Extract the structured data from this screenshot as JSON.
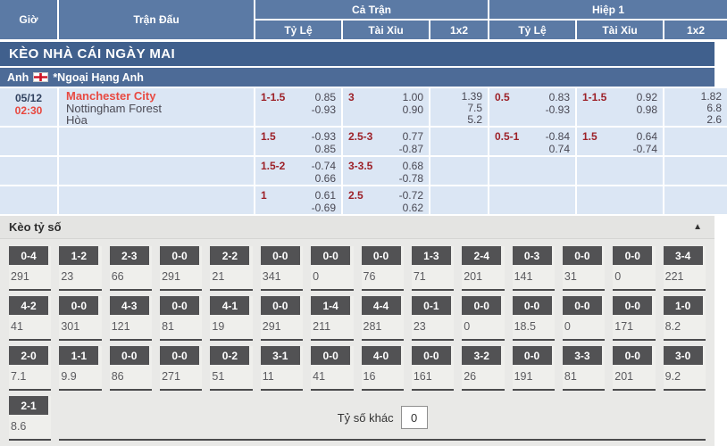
{
  "table_header": {
    "time": "Giờ",
    "match": "Trận Đấu",
    "full_time": "Cả Trận",
    "first_half": "Hiệp 1",
    "handicap": "Tỷ Lệ",
    "over_under": "Tài Xỉu",
    "one_x_two": "1x2"
  },
  "section_bar": {
    "title": "KÈO NHÀ CÁI NGÀY MAI"
  },
  "league_bar": {
    "country": "Anh",
    "league": "*Ngoại Hạng Anh"
  },
  "match": {
    "date": "05/12",
    "time": "02:30",
    "home_team": "Manchester City",
    "away_team": "Nottingham Forest",
    "draw": "Hòa"
  },
  "odds_rows": [
    {
      "ft_handicap": {
        "line": "1-1.5",
        "odds": [
          "0.85",
          "-0.93"
        ]
      },
      "ft_over_under": {
        "line": "3",
        "odds": [
          "1.00",
          "0.90"
        ]
      },
      "ft_1x2": {
        "odds": [
          "1.39",
          "7.5",
          "5.2"
        ]
      },
      "h1_handicap": {
        "line": "0.5",
        "odds": [
          "0.83",
          "-0.93"
        ]
      },
      "h1_over_under": {
        "line": "1-1.5",
        "odds": [
          "0.92",
          "0.98"
        ]
      },
      "h1_1x2": {
        "odds": [
          "1.82",
          "6.8",
          "2.6"
        ]
      }
    },
    {
      "ft_handicap": {
        "line": "1.5",
        "odds": [
          "-0.93",
          "0.85"
        ]
      },
      "ft_over_under": {
        "line": "2.5-3",
        "odds": [
          "0.77",
          "-0.87"
        ]
      },
      "ft_1x2": {
        "odds": []
      },
      "h1_handicap": {
        "line": "0.5-1",
        "odds": [
          "-0.84",
          "0.74"
        ]
      },
      "h1_over_under": {
        "line": "1.5",
        "odds": [
          "0.64",
          "-0.74"
        ]
      },
      "h1_1x2": {
        "odds": []
      }
    },
    {
      "ft_handicap": {
        "line": "1.5-2",
        "odds": [
          "-0.74",
          "0.66"
        ]
      },
      "ft_over_under": {
        "line": "3-3.5",
        "odds": [
          "0.68",
          "-0.78"
        ]
      },
      "ft_1x2": {
        "odds": []
      },
      "h1_handicap": {
        "line": "",
        "odds": []
      },
      "h1_over_under": {
        "line": "",
        "odds": []
      },
      "h1_1x2": {
        "odds": []
      }
    },
    {
      "ft_handicap": {
        "line": "1",
        "odds": [
          "0.61",
          "-0.69"
        ]
      },
      "ft_over_under": {
        "line": "2.5",
        "odds": [
          "-0.72",
          "0.62"
        ]
      },
      "ft_1x2": {
        "odds": []
      },
      "h1_handicap": {
        "line": "",
        "odds": []
      },
      "h1_over_under": {
        "line": "",
        "odds": []
      },
      "h1_1x2": {
        "odds": []
      }
    }
  ],
  "score_section": {
    "title": "Kèo tỷ số",
    "collapse_arrow": "▲",
    "rows": [
      {
        "cells": [
          {
            "score": "0-4",
            "odds": "291"
          },
          {
            "score": "1-2",
            "odds": "23"
          },
          {
            "score": "2-3",
            "odds": "66"
          },
          {
            "score": "0-0",
            "odds": "291"
          },
          {
            "score": "2-2",
            "odds": "21"
          },
          {
            "score": "0-0",
            "odds": "341"
          },
          {
            "score": "0-0",
            "odds": "0"
          },
          {
            "score": "0-0",
            "odds": "76"
          },
          {
            "score": "1-3",
            "odds": "71"
          },
          {
            "score": "2-4",
            "odds": "201"
          },
          {
            "score": "0-3",
            "odds": "141"
          },
          {
            "score": "0-0",
            "odds": "31"
          },
          {
            "score": "0-0",
            "odds": "0"
          },
          {
            "score": "3-4",
            "odds": "221"
          }
        ]
      },
      {
        "cells": [
          {
            "score": "4-2",
            "odds": "41"
          },
          {
            "score": "0-0",
            "odds": "301"
          },
          {
            "score": "4-3",
            "odds": "121"
          },
          {
            "score": "0-0",
            "odds": "81"
          },
          {
            "score": "4-1",
            "odds": "19"
          },
          {
            "score": "0-0",
            "odds": "291"
          },
          {
            "score": "1-4",
            "odds": "211"
          },
          {
            "score": "4-4",
            "odds": "281"
          },
          {
            "score": "0-1",
            "odds": "23"
          },
          {
            "score": "0-0",
            "odds": "0"
          },
          {
            "score": "0-0",
            "odds": "18.5"
          },
          {
            "score": "0-0",
            "odds": "0"
          },
          {
            "score": "0-0",
            "odds": "171"
          },
          {
            "score": "1-0",
            "odds": "8.2"
          }
        ]
      },
      {
        "cells": [
          {
            "score": "2-0",
            "odds": "7.1"
          },
          {
            "score": "1-1",
            "odds": "9.9"
          },
          {
            "score": "0-0",
            "odds": "86"
          },
          {
            "score": "0-0",
            "odds": "271"
          },
          {
            "score": "0-2",
            "odds": "51"
          },
          {
            "score": "3-1",
            "odds": "11"
          },
          {
            "score": "0-0",
            "odds": "41"
          },
          {
            "score": "4-0",
            "odds": "16"
          },
          {
            "score": "0-0",
            "odds": "161"
          },
          {
            "score": "3-2",
            "odds": "26"
          },
          {
            "score": "0-0",
            "odds": "191"
          },
          {
            "score": "3-3",
            "odds": "81"
          },
          {
            "score": "0-0",
            "odds": "201"
          },
          {
            "score": "3-0",
            "odds": "9.2"
          }
        ]
      },
      {
        "cells": [
          {
            "score": "2-1",
            "odds": "8.6"
          }
        ]
      }
    ],
    "other_score_label": "Tỷ số khác",
    "other_score_value": "0"
  },
  "colors": {
    "header_blue": "#5b7aa5",
    "section_blue": "#40608d",
    "league_blue": "#4d6b97",
    "row_light_blue": "#dbe6f4",
    "accent_red": "#e8473e",
    "handicap_maroon": "#9d2128",
    "chip_gray": "#525254"
  }
}
